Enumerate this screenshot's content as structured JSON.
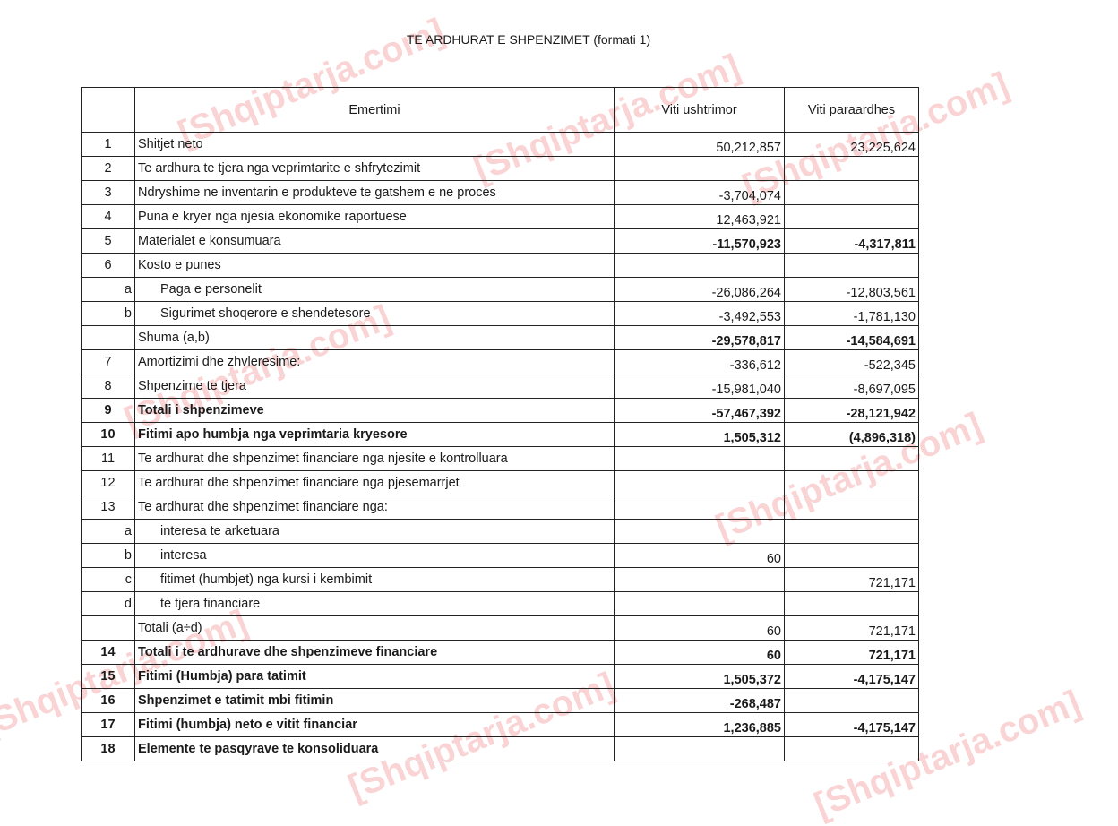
{
  "title": "TE ARDHURAT E SHPENZIMET (formati 1)",
  "watermark": "[Shqiptarja.com]",
  "headers": {
    "num": "",
    "name": "Emertimi",
    "current": "Viti ushtrimor",
    "previous": "Viti paraardhes"
  },
  "rows": [
    {
      "num": "1",
      "label": "Shitjet neto",
      "current": "50,212,857",
      "previous": "23,225,624"
    },
    {
      "num": "2",
      "label": "Te ardhura te tjera nga veprimtarite e shfrytezimit",
      "current": "",
      "previous": ""
    },
    {
      "num": "3",
      "label": "Ndryshime ne inventarin e produkteve te gatshem e ne proces",
      "current": "-3,704,074",
      "previous": ""
    },
    {
      "num": "4",
      "label": "Puna e kryer nga njesia ekonomike raportuese",
      "current": "12,463,921",
      "previous": ""
    },
    {
      "num": "5",
      "label": "Materialet e konsumuara",
      "current": "-11,570,923",
      "previous": "-4,317,811"
    },
    {
      "num": "6",
      "label": "Kosto e punes",
      "current": "",
      "previous": ""
    },
    {
      "num": "a",
      "label": "Paga e personelit",
      "current": "-26,086,264",
      "previous": "-12,803,561"
    },
    {
      "num": "b",
      "label": "Sigurimet shoqerore e shendetesore",
      "current": "-3,492,553",
      "previous": "-1,781,130"
    },
    {
      "num": "",
      "label": "Shuma (a,b)",
      "current": "-29,578,817",
      "previous": "-14,584,691"
    },
    {
      "num": "7",
      "label": "Amortizimi dhe zhvleresime:",
      "current": "-336,612",
      "previous": "-522,345"
    },
    {
      "num": "8",
      "label": "Shpenzime te tjera",
      "current": "-15,981,040",
      "previous": "-8,697,095"
    },
    {
      "num": "9",
      "label": "Totali i shpenzimeve",
      "current": "-57,467,392",
      "previous": "-28,121,942"
    },
    {
      "num": "10",
      "label": "Fitimi apo humbja nga veprimtaria kryesore",
      "current": "1,505,312",
      "previous": "(4,896,318)"
    },
    {
      "num": "11",
      "label": "Te ardhurat dhe shpenzimet financiare nga njesite e kontrolluara",
      "current": "",
      "previous": ""
    },
    {
      "num": "12",
      "label": "Te ardhurat dhe shpenzimet financiare nga pjesemarrjet",
      "current": "",
      "previous": ""
    },
    {
      "num": "13",
      "label": "Te ardhurat dhe shpenzimet financiare nga:",
      "current": "",
      "previous": ""
    },
    {
      "num": "a",
      "label": "interesa te arketuara",
      "current": "",
      "previous": ""
    },
    {
      "num": "b",
      "label": "interesa",
      "current": "60",
      "previous": ""
    },
    {
      "num": "c",
      "label": "fitimet (humbjet) nga kursi i kembimit",
      "current": "",
      "previous": "721,171"
    },
    {
      "num": "d",
      "label": "te tjera financiare",
      "current": "",
      "previous": ""
    },
    {
      "num": "",
      "label": "Totali (a÷d)",
      "current": "60",
      "previous": "721,171"
    },
    {
      "num": "14",
      "label": "Totali i te ardhurave dhe shpenzimeve financiare",
      "current": "60",
      "previous": "721,171"
    },
    {
      "num": "15",
      "label": "Fitimi (Humbja) para tatimit",
      "current": "1,505,372",
      "previous": "-4,175,147"
    },
    {
      "num": "16",
      "label": "Shpenzimet e tatimit mbi fitimin",
      "current": "-268,487",
      "previous": ""
    },
    {
      "num": "17",
      "label": "Fitimi (humbja) neto e vitit financiar",
      "current": "1,236,885",
      "previous": "-4,175,147"
    },
    {
      "num": "18",
      "label": "Elemente te pasqyrave te konsoliduara",
      "current": "",
      "previous": ""
    }
  ]
}
